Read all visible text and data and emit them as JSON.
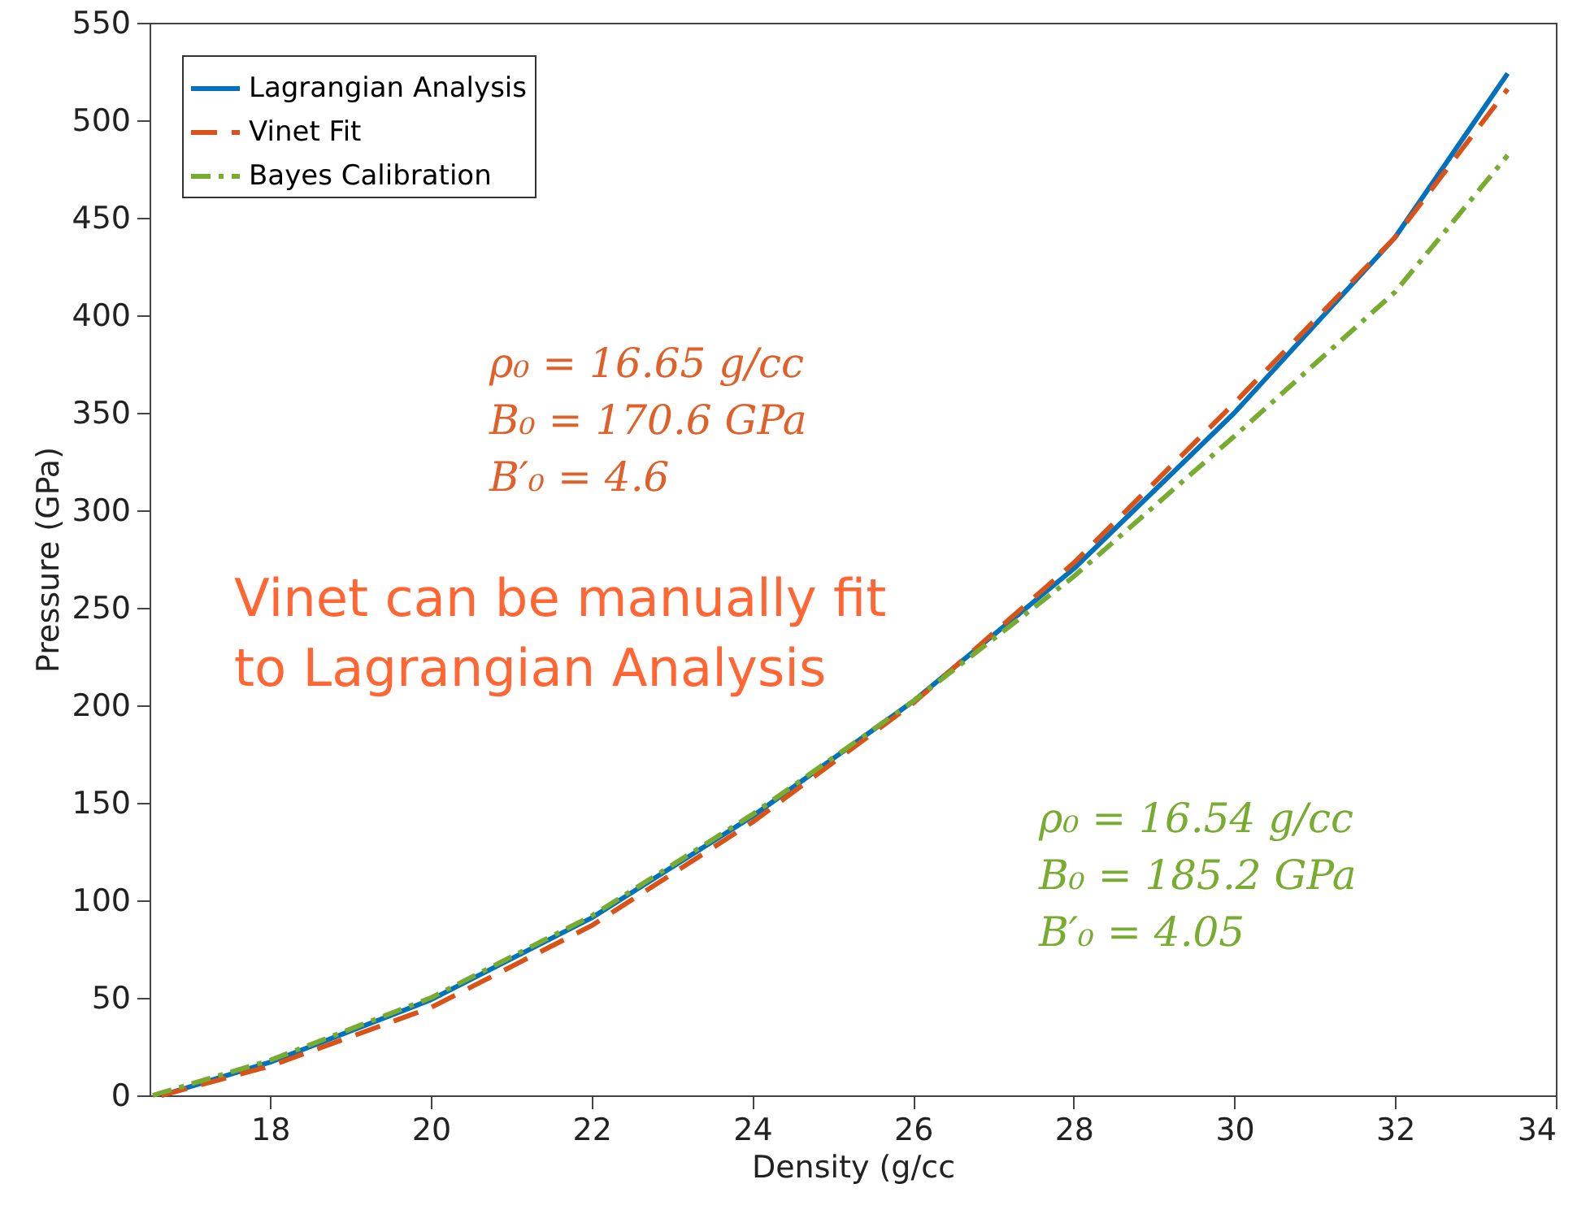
{
  "chart_data": {
    "type": "line",
    "xlabel": "Density (g/cc",
    "ylabel": "Pressure (GPa)",
    "xlim": [
      16.5,
      34
    ],
    "xticks": [
      18,
      20,
      22,
      24,
      26,
      28,
      30,
      32,
      34
    ],
    "ylim": [
      0,
      550
    ],
    "yticks": [
      0,
      50,
      100,
      150,
      200,
      250,
      300,
      350,
      400,
      450,
      500,
      550
    ],
    "legend": "top left",
    "grid": false,
    "marker": "none",
    "series": [
      {
        "name": "Lagrangian Analysis",
        "color": "#0072bd",
        "line_style": "solid",
        "x": [
          16.65,
          18,
          20,
          22,
          24,
          26,
          28,
          30,
          32,
          33.4
        ],
        "values": [
          0,
          17,
          49,
          91,
          143,
          202,
          270,
          350,
          440,
          524
        ]
      },
      {
        "name": "Vinet Fit",
        "color": "#d95319",
        "line_style": "dashed",
        "x": [
          16.65,
          18,
          20,
          22,
          24,
          26,
          28,
          30,
          32,
          33.4
        ],
        "values": [
          0,
          15,
          45,
          87,
          140,
          201,
          273,
          355,
          440,
          516
        ]
      },
      {
        "name": "Bayes Calibration",
        "color": "#77ac30",
        "line_style": "dashdot",
        "x": [
          16.54,
          18,
          20,
          22,
          24,
          26,
          28,
          30,
          32,
          33.4
        ],
        "values": [
          0,
          18,
          50,
          92,
          144,
          202,
          266,
          338,
          412,
          482
        ]
      }
    ],
    "annotations": [
      "Vinet can be manually fit to Lagrangian Analysis",
      "ρ₀ = 16.65 g/cc",
      "B₀ = 170.6 GPa",
      "B′₀ = 4.6",
      "ρ₀ = 16.54 g/cc",
      "B₀ = 185.2 GPa",
      "B′₀ = 4.05"
    ]
  }
}
